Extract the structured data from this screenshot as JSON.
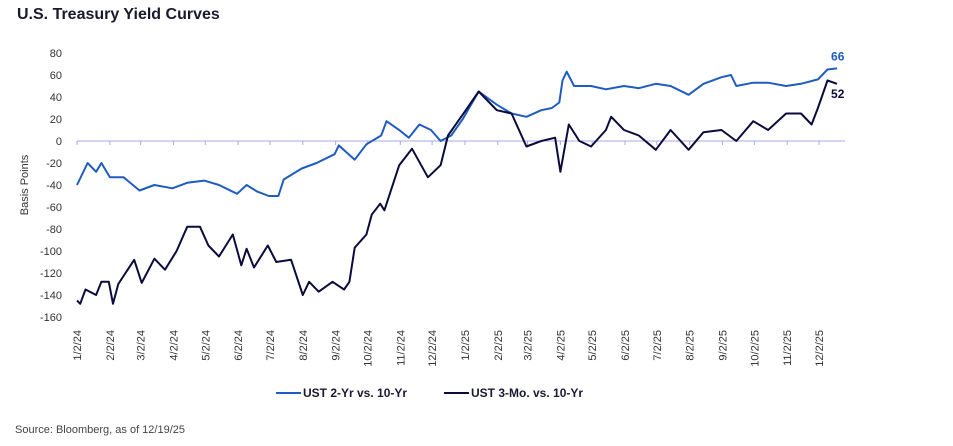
{
  "title": "U.S. Treasury Yield Curves",
  "source": "Source: Bloomberg, as of 12/19/25",
  "chart_data": {
    "type": "line",
    "title": "U.S. Treasury Yield Curves",
    "ylabel": "Basis Points",
    "xlabel": "",
    "ylim": [
      -160,
      80
    ],
    "y_ticks": [
      80,
      60,
      40,
      20,
      0,
      -20,
      -40,
      -60,
      -80,
      -100,
      -120,
      -140,
      -160
    ],
    "x_ticks": [
      "2024-01-02",
      "2024-02-02",
      "2024-03-02",
      "2024-04-02",
      "2024-05-02",
      "2024-06-02",
      "2024-07-02",
      "2024-08-02",
      "2024-09-02",
      "2024-10-02",
      "2024-11-02",
      "2024-12-02",
      "2025-01-02",
      "2025-02-02",
      "2025-03-02",
      "2025-04-02",
      "2025-05-02",
      "2025-06-02",
      "2025-07-02",
      "2025-08-02",
      "2025-09-02",
      "2025-10-02",
      "2025-11-02",
      "2025-12-02"
    ],
    "x_tick_labels": [
      "1/2/24",
      "2/2/24",
      "3/2/24",
      "4/2/24",
      "5/2/24",
      "6/2/24",
      "7/2/24",
      "8/2/24",
      "9/2/24",
      "10/2/24",
      "11/2/24",
      "12/2/24",
      "1/2/25",
      "2/2/25",
      "3/2/25",
      "4/2/25",
      "5/2/25",
      "6/2/25",
      "7/2/25",
      "8/2/25",
      "9/2/25",
      "10/2/25",
      "11/2/25",
      "12/2/25"
    ],
    "grid": false,
    "zero_line": true,
    "legend_position": "bottom",
    "series": [
      {
        "name": "UST 2-Yr vs. 10-Yr",
        "color": "#1f5cc0",
        "end_label": "66",
        "points": [
          [
            "2024-01-02",
            -40
          ],
          [
            "2024-01-12",
            -20
          ],
          [
            "2024-01-20",
            -28
          ],
          [
            "2024-01-25",
            -20
          ],
          [
            "2024-02-02",
            -33
          ],
          [
            "2024-02-15",
            -33
          ],
          [
            "2024-03-01",
            -45
          ],
          [
            "2024-03-15",
            -40
          ],
          [
            "2024-04-01",
            -43
          ],
          [
            "2024-04-15",
            -38
          ],
          [
            "2024-05-01",
            -36
          ],
          [
            "2024-05-15",
            -40
          ],
          [
            "2024-06-01",
            -48
          ],
          [
            "2024-06-10",
            -40
          ],
          [
            "2024-06-20",
            -46
          ],
          [
            "2024-07-01",
            -50
          ],
          [
            "2024-07-10",
            -50
          ],
          [
            "2024-07-15",
            -35
          ],
          [
            "2024-08-01",
            -25
          ],
          [
            "2024-08-15",
            -20
          ],
          [
            "2024-09-01",
            -12
          ],
          [
            "2024-09-05",
            -4
          ],
          [
            "2024-09-20",
            -17
          ],
          [
            "2024-10-01",
            -3
          ],
          [
            "2024-10-15",
            5
          ],
          [
            "2024-10-20",
            18
          ],
          [
            "2024-11-01",
            10
          ],
          [
            "2024-11-10",
            3
          ],
          [
            "2024-11-20",
            15
          ],
          [
            "2024-12-01",
            10
          ],
          [
            "2024-12-10",
            0
          ],
          [
            "2024-12-20",
            5
          ],
          [
            "2024-12-31",
            20
          ],
          [
            "2025-01-15",
            45
          ],
          [
            "2025-02-01",
            33
          ],
          [
            "2025-02-15",
            25
          ],
          [
            "2025-03-01",
            22
          ],
          [
            "2025-03-15",
            28
          ],
          [
            "2025-03-25",
            30
          ],
          [
            "2025-04-01",
            35
          ],
          [
            "2025-04-04",
            55
          ],
          [
            "2025-04-08",
            63
          ],
          [
            "2025-04-15",
            50
          ],
          [
            "2025-05-01",
            50
          ],
          [
            "2025-05-15",
            47
          ],
          [
            "2025-06-01",
            50
          ],
          [
            "2025-06-15",
            48
          ],
          [
            "2025-07-01",
            52
          ],
          [
            "2025-07-15",
            50
          ],
          [
            "2025-08-01",
            42
          ],
          [
            "2025-08-15",
            52
          ],
          [
            "2025-09-01",
            58
          ],
          [
            "2025-09-10",
            60
          ],
          [
            "2025-09-15",
            50
          ],
          [
            "2025-10-01",
            53
          ],
          [
            "2025-10-15",
            53
          ],
          [
            "2025-11-01",
            50
          ],
          [
            "2025-11-15",
            52
          ],
          [
            "2025-12-01",
            56
          ],
          [
            "2025-12-10",
            65
          ],
          [
            "2025-12-19",
            66
          ]
        ]
      },
      {
        "name": "UST 3-Mo. vs. 10-Yr",
        "color": "#0b0b3d",
        "end_label": "52",
        "points": [
          [
            "2024-01-02",
            -145
          ],
          [
            "2024-01-05",
            -148
          ],
          [
            "2024-01-10",
            -135
          ],
          [
            "2024-01-20",
            -140
          ],
          [
            "2024-01-25",
            -128
          ],
          [
            "2024-02-01",
            -128
          ],
          [
            "2024-02-05",
            -148
          ],
          [
            "2024-02-10",
            -130
          ],
          [
            "2024-02-25",
            -108
          ],
          [
            "2024-03-03",
            -129
          ],
          [
            "2024-03-15",
            -107
          ],
          [
            "2024-03-25",
            -117
          ],
          [
            "2024-04-05",
            -100
          ],
          [
            "2024-04-15",
            -78
          ],
          [
            "2024-04-27",
            -78
          ],
          [
            "2024-05-05",
            -95
          ],
          [
            "2024-05-15",
            -105
          ],
          [
            "2024-05-28",
            -85
          ],
          [
            "2024-06-05",
            -113
          ],
          [
            "2024-06-10",
            -98
          ],
          [
            "2024-06-17",
            -115
          ],
          [
            "2024-06-30",
            -95
          ],
          [
            "2024-07-08",
            -110
          ],
          [
            "2024-07-22",
            -108
          ],
          [
            "2024-08-02",
            -140
          ],
          [
            "2024-08-08",
            -128
          ],
          [
            "2024-08-17",
            -137
          ],
          [
            "2024-08-30",
            -128
          ],
          [
            "2024-09-10",
            -135
          ],
          [
            "2024-09-15",
            -128
          ],
          [
            "2024-09-20",
            -97
          ],
          [
            "2024-10-01",
            -85
          ],
          [
            "2024-10-06",
            -67
          ],
          [
            "2024-10-14",
            -57
          ],
          [
            "2024-10-18",
            -63
          ],
          [
            "2024-11-01",
            -22
          ],
          [
            "2024-11-13",
            -7
          ],
          [
            "2024-11-28",
            -33
          ],
          [
            "2024-12-10",
            -22
          ],
          [
            "2024-12-17",
            5
          ],
          [
            "2025-01-02",
            27
          ],
          [
            "2025-01-15",
            45
          ],
          [
            "2025-02-01",
            28
          ],
          [
            "2025-02-15",
            25
          ],
          [
            "2025-03-01",
            -5
          ],
          [
            "2025-03-15",
            0
          ],
          [
            "2025-03-28",
            3
          ],
          [
            "2025-04-02",
            -28
          ],
          [
            "2025-04-10",
            15
          ],
          [
            "2025-04-20",
            0
          ],
          [
            "2025-05-01",
            -5
          ],
          [
            "2025-05-15",
            10
          ],
          [
            "2025-05-20",
            22
          ],
          [
            "2025-06-01",
            10
          ],
          [
            "2025-06-15",
            5
          ],
          [
            "2025-07-01",
            -8
          ],
          [
            "2025-07-15",
            10
          ],
          [
            "2025-08-01",
            -8
          ],
          [
            "2025-08-15",
            8
          ],
          [
            "2025-09-01",
            10
          ],
          [
            "2025-09-15",
            0
          ],
          [
            "2025-10-01",
            18
          ],
          [
            "2025-10-15",
            10
          ],
          [
            "2025-11-01",
            25
          ],
          [
            "2025-11-15",
            25
          ],
          [
            "2025-11-25",
            15
          ],
          [
            "2025-12-01",
            30
          ],
          [
            "2025-12-10",
            55
          ],
          [
            "2025-12-19",
            52
          ]
        ]
      }
    ]
  }
}
